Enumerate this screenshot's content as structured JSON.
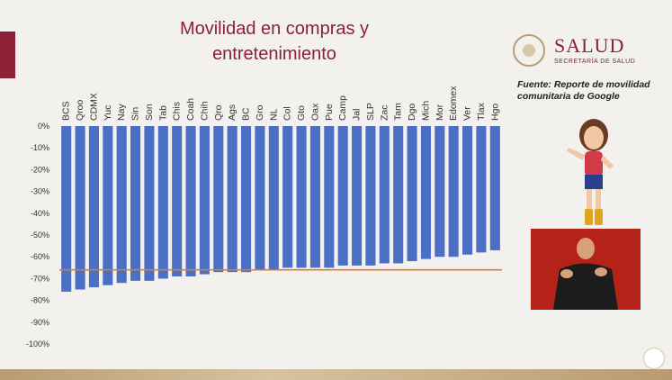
{
  "slide": {
    "title_line1": "Movilidad en compras y",
    "title_line2": "entretenimiento",
    "source_text": "Fuente: Reporte de movilidad comunitaria de Google"
  },
  "logo": {
    "name": "SALUD",
    "subtitle": "SECRETARÍA DE SALUD"
  },
  "colors": {
    "bar": "#4a6fc5",
    "reference_line": "#e07a2e",
    "title": "#8a2136",
    "accent_band": "#8c2137"
  },
  "chart_data": {
    "type": "bar",
    "title": "",
    "xlabel": "",
    "ylabel": "",
    "ylim": [
      -100,
      0
    ],
    "y_ticks": [
      "0%",
      "-10%",
      "-20%",
      "-30%",
      "-40%",
      "-50%",
      "-60%",
      "-70%",
      "-80%",
      "-90%",
      "-100%"
    ],
    "categories": [
      "BCS",
      "Qroo",
      "CDMX",
      "Yuc",
      "Nay",
      "Sin",
      "Son",
      "Tab",
      "Chis",
      "Coah",
      "Chih",
      "Qro",
      "Ags",
      "BC",
      "Gro",
      "NL",
      "Col",
      "Gto",
      "Oax",
      "Pue",
      "Camp",
      "Jal",
      "SLP",
      "Zac",
      "Tam",
      "Dgo",
      "Mich",
      "Mor",
      "Edomex",
      "Ver",
      "Tlax",
      "Hgo"
    ],
    "values": [
      -76,
      -75,
      -74,
      -73,
      -72,
      -71,
      -71,
      -70,
      -69,
      -69,
      -68,
      -67,
      -67,
      -67,
      -66,
      -66,
      -65,
      -65,
      -65,
      -65,
      -64,
      -64,
      -64,
      -63,
      -63,
      -62,
      -61,
      -60,
      -60,
      -59,
      -58,
      -57
    ],
    "reference_value": -66,
    "grid": false,
    "legend": "none"
  }
}
